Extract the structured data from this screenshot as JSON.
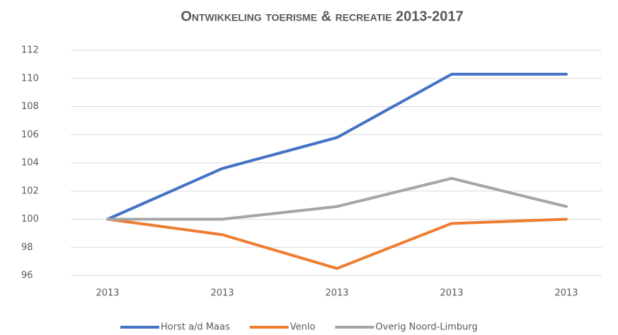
{
  "chart_data": {
    "type": "line",
    "title": "Ontwikkeling toerisme & recreatie 2013-2017",
    "categories": [
      "2013",
      "2013",
      "2013",
      "2013",
      "2013"
    ],
    "series": [
      {
        "name": "Horst a/d Maas",
        "color": "#4472c4",
        "values": [
          100,
          103.6,
          105.8,
          110.3,
          110.3
        ]
      },
      {
        "name": "Venlo",
        "color": "#ed7d31",
        "values": [
          100,
          98.9,
          96.5,
          99.7,
          100
        ]
      },
      {
        "name": "Overig Noord-Limburg",
        "color": "#a5a5a5",
        "values": [
          100,
          100,
          100.9,
          102.9,
          100.9
        ]
      }
    ],
    "ylim": [
      96,
      112
    ],
    "yticks": [
      96,
      98,
      100,
      102,
      104,
      106,
      108,
      110,
      112
    ],
    "grid": true,
    "legend": "bottom"
  }
}
